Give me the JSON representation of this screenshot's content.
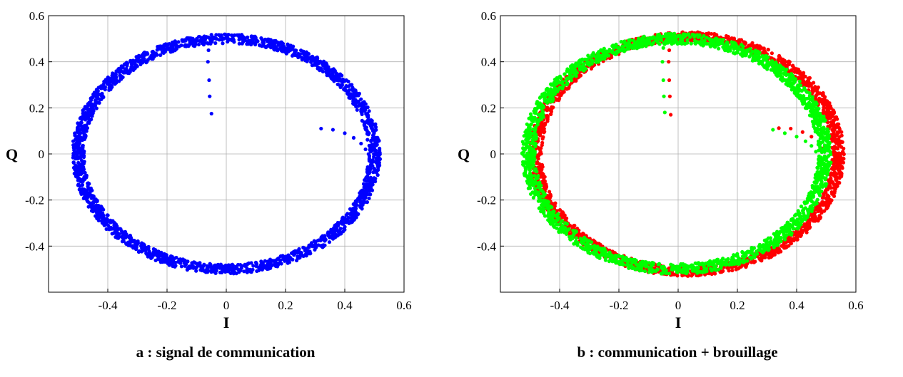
{
  "chart_data": [
    {
      "type": "scatter",
      "title": "",
      "caption": "a : signal de communication",
      "xlabel": "I",
      "ylabel": "Q",
      "xlim": [
        -0.6,
        0.6
      ],
      "ylim": [
        -0.6,
        0.6
      ],
      "xticks": [
        "-0.4",
        "-0.2",
        "0",
        "0.2",
        "0.4",
        "0.6"
      ],
      "yticks": [
        "0.6",
        "0.4",
        "0.2",
        "0",
        "-0.2",
        "-0.4"
      ],
      "grid": true,
      "legend": "none",
      "series": [
        {
          "color": "#0000ff",
          "ring": {
            "center": [
              0.0,
              0.0
            ],
            "radius": 0.5,
            "thickness": 0.04
          },
          "points": [
            [
              -0.06,
              0.45
            ],
            [
              -0.062,
              0.4
            ],
            [
              -0.058,
              0.32
            ],
            [
              -0.056,
              0.25
            ],
            [
              -0.05,
              0.175
            ],
            [
              0.32,
              0.11
            ],
            [
              0.36,
              0.105
            ],
            [
              0.4,
              0.09
            ],
            [
              0.43,
              0.07
            ],
            [
              0.455,
              0.045
            ],
            [
              0.47,
              0.02
            ]
          ]
        }
      ]
    },
    {
      "type": "scatter",
      "title": "",
      "caption": "b : communication + brouillage",
      "xlabel": "I",
      "ylabel": "Q",
      "xlim": [
        -0.6,
        0.6
      ],
      "ylim": [
        -0.6,
        0.6
      ],
      "xticks": [
        "-0.4",
        "-0.2",
        "0",
        "0.2",
        "0.4",
        "0.6"
      ],
      "yticks": [
        "0.6",
        "0.4",
        "0.2",
        "0",
        "-0.2",
        "-0.4"
      ],
      "grid": true,
      "legend": "none",
      "series": [
        {
          "color": "#ff0000",
          "ring": {
            "center": [
              0.03,
              0.0
            ],
            "radius": 0.51,
            "thickness": 0.04
          },
          "points": [
            [
              -0.03,
              0.45
            ],
            [
              -0.032,
              0.4
            ],
            [
              -0.03,
              0.32
            ],
            [
              -0.028,
              0.25
            ],
            [
              -0.025,
              0.17
            ],
            [
              0.34,
              0.112
            ],
            [
              0.38,
              0.11
            ],
            [
              0.42,
              0.095
            ],
            [
              0.45,
              0.075
            ],
            [
              0.475,
              0.05
            ],
            [
              0.49,
              0.025
            ]
          ]
        },
        {
          "color": "#00ff00",
          "ring": {
            "center": [
              -0.005,
              0.0
            ],
            "radius": 0.5,
            "thickness": 0.045
          },
          "points": [
            [
              -0.05,
              0.46
            ],
            [
              -0.053,
              0.4
            ],
            [
              -0.05,
              0.32
            ],
            [
              -0.048,
              0.25
            ],
            [
              -0.045,
              0.18
            ],
            [
              0.32,
              0.105
            ],
            [
              0.36,
              0.09
            ],
            [
              0.4,
              0.075
            ],
            [
              0.43,
              0.055
            ],
            [
              0.45,
              0.035
            ],
            [
              0.465,
              0.01
            ]
          ]
        }
      ]
    }
  ]
}
